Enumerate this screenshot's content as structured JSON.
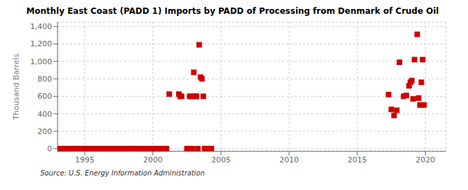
{
  "chart_data": {
    "type": "scatter",
    "title": "Monthly East Coast (PADD 1) Imports by PADD of Processing from Denmark of Crude Oil",
    "ylabel": "Thousand Barrels",
    "source": "Source: U.S. Energy Information Administration",
    "color": "#cc0000",
    "marker": "square",
    "grid": true,
    "xlim": [
      1993.0,
      2021.5
    ],
    "ylim": [
      -30,
      1450
    ],
    "xticks": [
      1995,
      2000,
      2005,
      2010,
      2015,
      2020
    ],
    "yticks": [
      0,
      200,
      400,
      600,
      800,
      {
        "value": 1000,
        "label": "1,000"
      },
      {
        "value": 1200,
        "label": "1,200"
      },
      {
        "value": 1400,
        "label": "1,400"
      }
    ],
    "x": [
      1993.1,
      1993.2,
      1993.3,
      1993.4,
      1993.5,
      1993.6,
      1993.7,
      1993.8,
      1993.9,
      1994.0,
      1994.1,
      1994.2,
      1994.3,
      1994.4,
      1994.5,
      1994.6,
      1994.7,
      1994.8,
      1994.9,
      1995.0,
      1995.1,
      1995.2,
      1995.3,
      1995.4,
      1995.5,
      1995.6,
      1995.7,
      1995.8,
      1995.9,
      1996.0,
      1996.1,
      1996.2,
      1996.3,
      1996.4,
      1996.5,
      1996.6,
      1996.7,
      1996.8,
      1996.9,
      1997.0,
      1997.1,
      1997.2,
      1997.3,
      1997.4,
      1997.5,
      1997.6,
      1997.7,
      1997.8,
      1997.9,
      1998.0,
      1998.1,
      1998.2,
      1998.3,
      1998.4,
      1998.5,
      1998.6,
      1998.7,
      1998.8,
      1998.9,
      1999.0,
      1999.1,
      1999.2,
      1999.3,
      1999.4,
      1999.5,
      1999.6,
      1999.7,
      1999.8,
      1999.9,
      2000.0,
      2000.1,
      2000.2,
      2000.3,
      2000.4,
      2000.5,
      2000.6,
      2000.7,
      2000.8,
      2000.9,
      2001.0,
      2001.2,
      2001.9,
      2002.0,
      2002.1,
      2002.5,
      2002.6,
      2002.7,
      2002.8,
      2002.9,
      2003.0,
      2003.1,
      2003.15,
      2003.2,
      2003.3,
      2003.4,
      2003.5,
      2003.6,
      2003.7,
      2003.8,
      2003.9,
      2004.0,
      2004.1,
      2004.2,
      2004.3,
      2017.3,
      2017.5,
      2017.7,
      2017.9,
      2018.1,
      2018.4,
      2018.6,
      2018.8,
      2018.9,
      2019.0,
      2019.1,
      2019.2,
      2019.4,
      2019.5,
      2019.6,
      2019.7,
      2019.8,
      2019.9
    ],
    "values": [
      0,
      0,
      0,
      0,
      0,
      0,
      0,
      0,
      0,
      0,
      0,
      0,
      0,
      0,
      0,
      0,
      0,
      0,
      0,
      0,
      0,
      0,
      0,
      0,
      0,
      0,
      0,
      0,
      0,
      0,
      0,
      0,
      0,
      0,
      0,
      0,
      0,
      0,
      0,
      0,
      0,
      0,
      0,
      0,
      0,
      0,
      0,
      0,
      0,
      0,
      0,
      0,
      0,
      0,
      0,
      0,
      0,
      0,
      0,
      0,
      0,
      0,
      0,
      0,
      0,
      0,
      0,
      0,
      0,
      0,
      0,
      0,
      0,
      0,
      0,
      0,
      0,
      0,
      0,
      0,
      625,
      625,
      600,
      600,
      0,
      0,
      600,
      600,
      0,
      875,
      600,
      600,
      600,
      0,
      1190,
      820,
      800,
      600,
      0,
      0,
      0,
      0,
      0,
      0,
      620,
      450,
      380,
      440,
      990,
      600,
      610,
      720,
      760,
      780,
      570,
      1020,
      1310,
      580,
      500,
      760,
      1020,
      500
    ]
  }
}
